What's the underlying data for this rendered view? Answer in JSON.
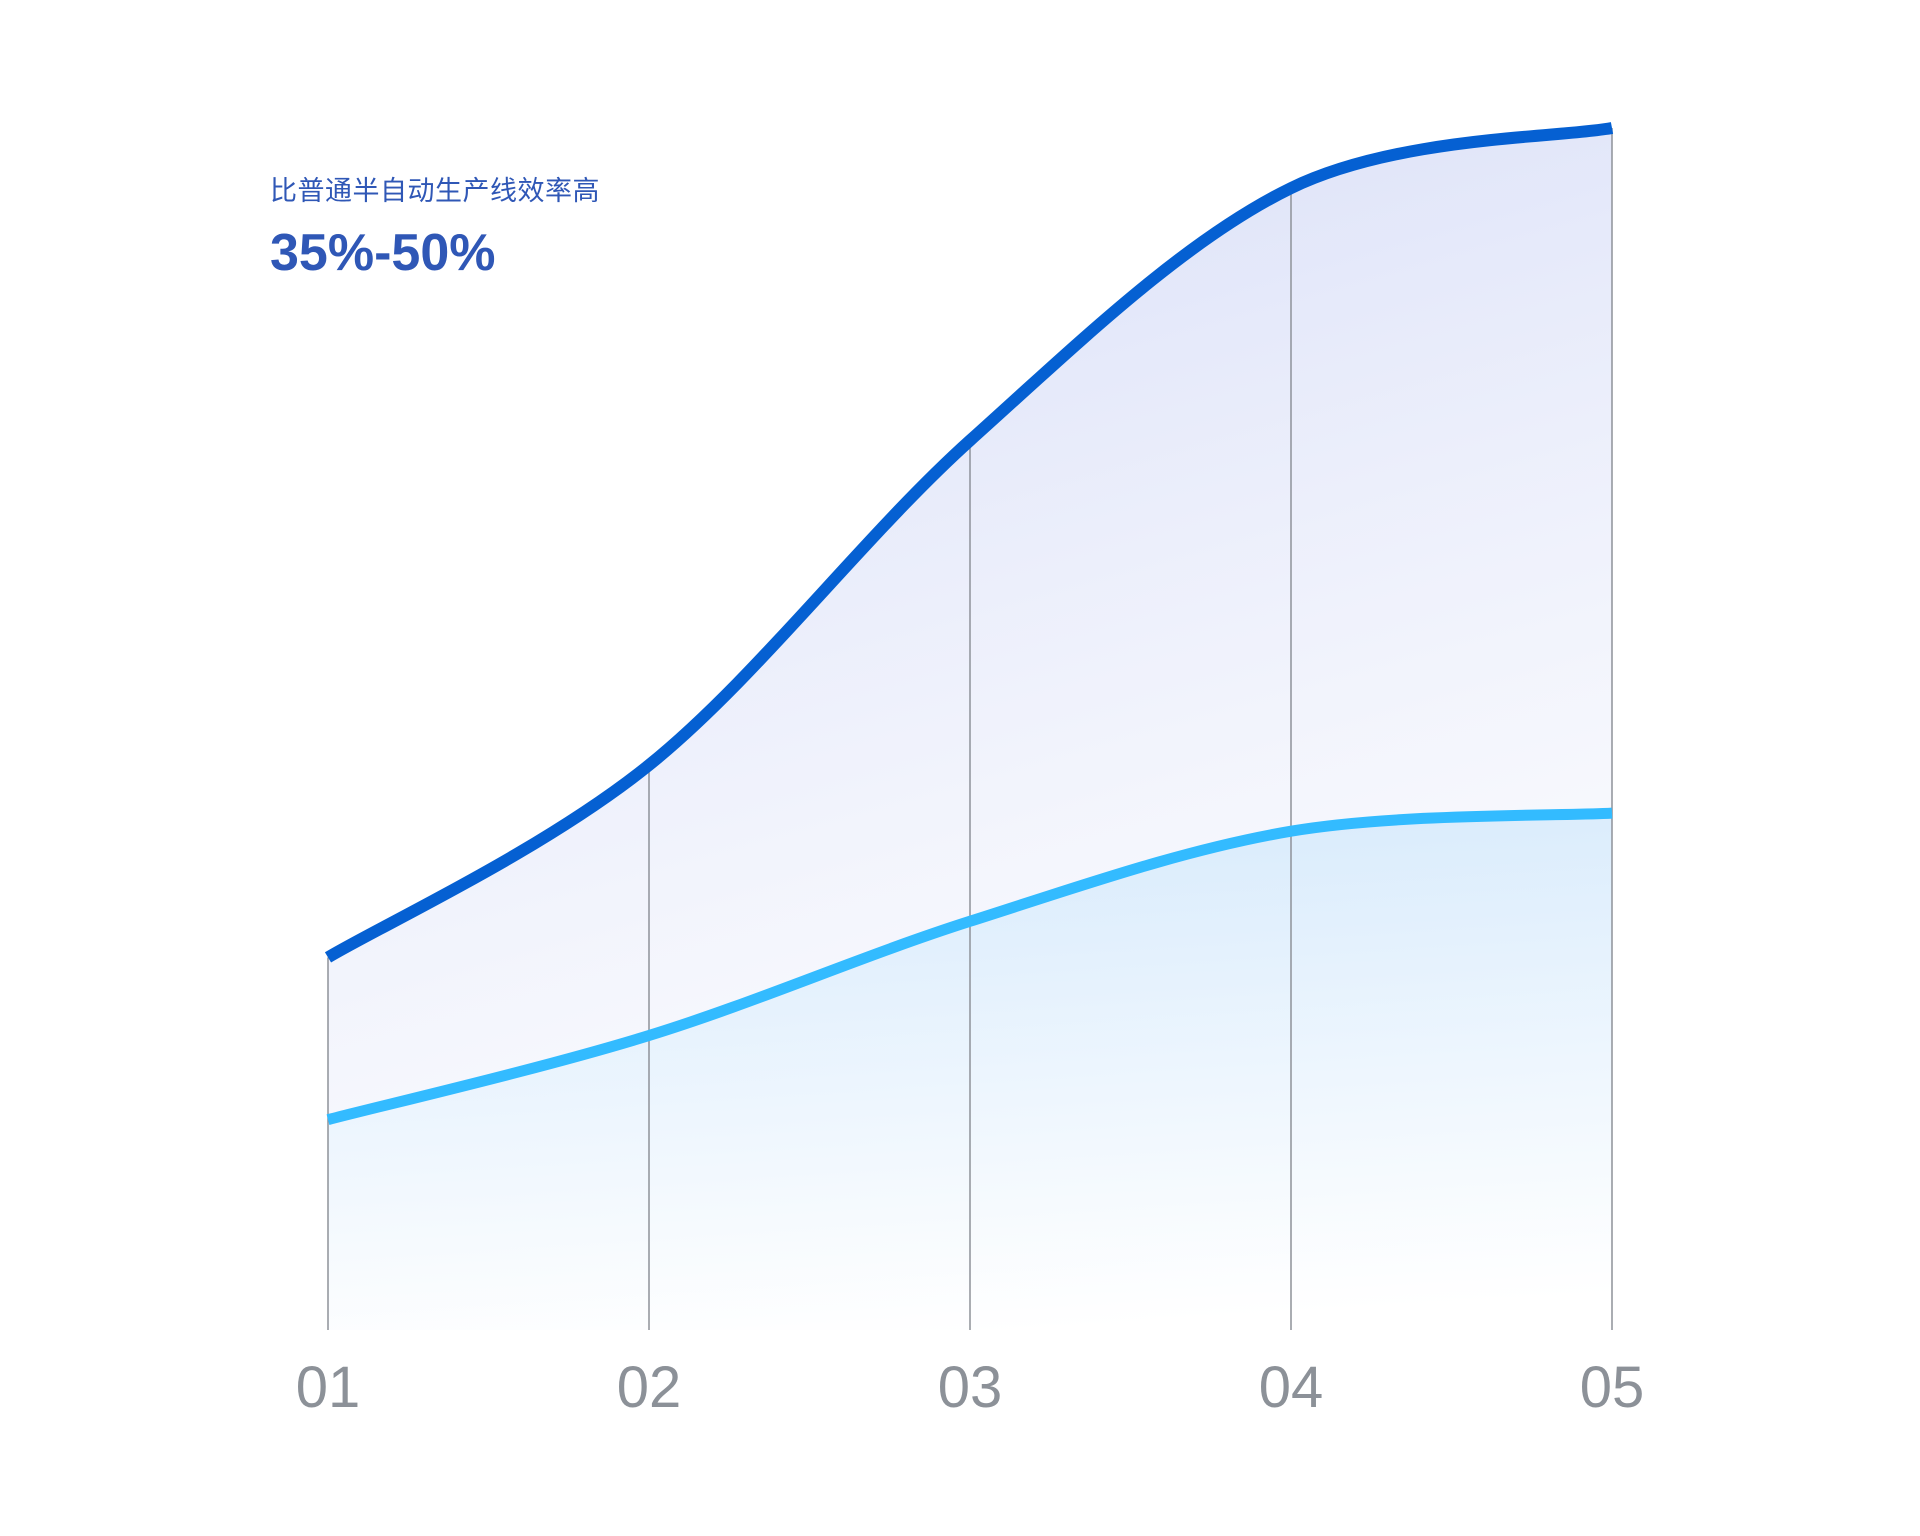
{
  "chart_data": {
    "type": "area",
    "categories": [
      "01",
      "02",
      "03",
      "04",
      "05"
    ],
    "series": [
      {
        "values": [
          31,
          47,
          74,
          95,
          100
        ],
        "color": "#0560d2"
      },
      {
        "values": [
          17.5,
          24.5,
          34,
          41.5,
          43
        ],
        "color": "#33bbff"
      }
    ],
    "title": "",
    "xlabel": "",
    "ylabel": "",
    "ylim": [
      0,
      100
    ],
    "grid": "vertical lines at each category",
    "legend": "none",
    "annotation": {
      "subtitle": "比普通半自动生产线效率高",
      "value": "35%-50%"
    }
  }
}
